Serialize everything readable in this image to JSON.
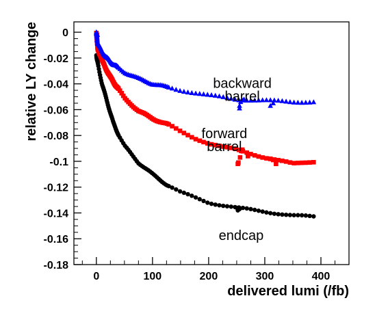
{
  "chart_data": {
    "type": "scatter",
    "xlabel": "delivered lumi (/fb)",
    "ylabel": "relative LY change",
    "xlim": [
      -40,
      450
    ],
    "ylim": [
      -0.18,
      0.008
    ],
    "x_ticks": [
      0,
      100,
      200,
      300,
      400
    ],
    "x_tick_labels": [
      "0",
      "100",
      "200",
      "300",
      "400"
    ],
    "y_ticks": [
      0,
      -0.02,
      -0.04,
      -0.06,
      -0.08,
      -0.1,
      -0.12,
      -0.14,
      -0.16,
      -0.18
    ],
    "y_tick_labels": [
      "0",
      "-0.02",
      "-0.04",
      "-0.06",
      "-0.08",
      "-0.1",
      "-0.12",
      "-0.14",
      "-0.16",
      "-0.18"
    ],
    "grid": false,
    "legend": "none",
    "annotations": [
      {
        "lines": [
          "backward",
          "barrel"
        ],
        "x": 260,
        "y": -0.043
      },
      {
        "lines": [
          "forward",
          "barrel"
        ],
        "x": 228,
        "y": -0.082
      },
      {
        "lines": [
          "endcap"
        ],
        "x": 258,
        "y": -0.161
      }
    ],
    "series": [
      {
        "marker": "triangle",
        "color": "#0000ff",
        "curve": [
          [
            0,
            0
          ],
          [
            2,
            -0.008
          ],
          [
            10,
            -0.015
          ],
          [
            25,
            -0.023
          ],
          [
            50,
            -0.031
          ],
          [
            75,
            -0.036
          ],
          [
            100,
            -0.04
          ],
          [
            150,
            -0.045
          ],
          [
            200,
            -0.049
          ],
          [
            250,
            -0.052
          ],
          [
            300,
            -0.053
          ],
          [
            350,
            -0.054
          ],
          [
            390,
            -0.054
          ]
        ],
        "extra_points": [
          [
            0,
            -0.001
          ],
          [
            2,
            -0.002
          ],
          [
            1,
            -0.006
          ],
          [
            255,
            -0.057
          ],
          [
            255,
            -0.059
          ],
          [
            257,
            -0.054
          ],
          [
            263,
            -0.052
          ],
          [
            310,
            -0.057
          ],
          [
            315,
            -0.055
          ]
        ]
      },
      {
        "marker": "square",
        "color": "#ff0000",
        "curve": [
          [
            0,
            0
          ],
          [
            2,
            -0.012
          ],
          [
            10,
            -0.022
          ],
          [
            25,
            -0.035
          ],
          [
            50,
            -0.051
          ],
          [
            75,
            -0.061
          ],
          [
            100,
            -0.067
          ],
          [
            125,
            -0.071
          ],
          [
            150,
            -0.077
          ],
          [
            175,
            -0.082
          ],
          [
            200,
            -0.086
          ],
          [
            225,
            -0.089
          ],
          [
            250,
            -0.091
          ],
          [
            275,
            -0.094
          ],
          [
            300,
            -0.097
          ],
          [
            350,
            -0.102
          ],
          [
            390,
            -0.1
          ]
        ],
        "extra_points": [
          [
            0,
            -0.001
          ],
          [
            1,
            -0.002
          ],
          [
            252,
            -0.102
          ],
          [
            253,
            -0.101
          ],
          [
            256,
            -0.097
          ],
          [
            258,
            -0.092
          ],
          [
            260,
            -0.091
          ],
          [
            270,
            -0.096
          ],
          [
            310,
            -0.098
          ],
          [
            315,
            -0.099
          ],
          [
            320,
            -0.102
          ]
        ]
      },
      {
        "marker": "circle",
        "color": "#000000",
        "curve": [
          [
            0,
            -0.018
          ],
          [
            2,
            -0.023
          ],
          [
            10,
            -0.04
          ],
          [
            20,
            -0.055
          ],
          [
            30,
            -0.07
          ],
          [
            40,
            -0.08
          ],
          [
            50,
            -0.088
          ],
          [
            75,
            -0.101
          ],
          [
            100,
            -0.11
          ],
          [
            125,
            -0.118
          ],
          [
            150,
            -0.124
          ],
          [
            175,
            -0.128
          ],
          [
            200,
            -0.132
          ],
          [
            250,
            -0.136
          ],
          [
            300,
            -0.139
          ],
          [
            350,
            -0.142
          ],
          [
            390,
            -0.143
          ]
        ],
        "extra_points": [
          [
            250,
            -0.136
          ],
          [
            252,
            -0.138
          ],
          [
            255,
            -0.137
          ]
        ]
      }
    ]
  }
}
